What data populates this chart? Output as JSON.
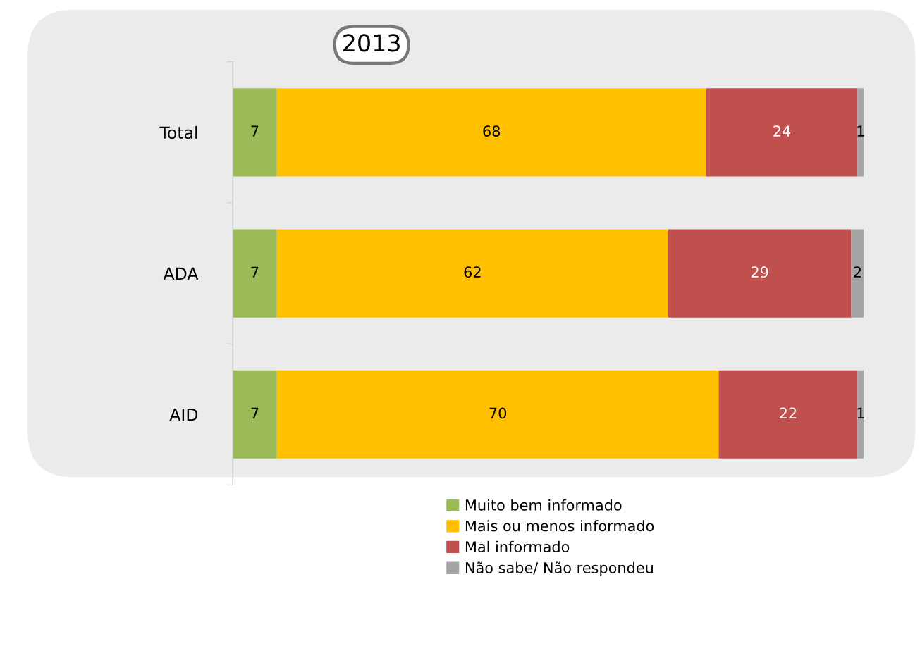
{
  "chart_data": {
    "type": "bar",
    "orientation": "horizontal",
    "stacked": true,
    "title": "2013",
    "categories": [
      "Total",
      "ADA",
      "AID"
    ],
    "series": [
      {
        "name": "Muito bem informado",
        "color": "#9bbb59",
        "values": [
          7,
          7,
          7
        ]
      },
      {
        "name": "Mais ou menos informado",
        "color": "#ffc000",
        "values": [
          68,
          62,
          70
        ]
      },
      {
        "name": "Mal informado",
        "color": "#c0504d",
        "values": [
          24,
          29,
          22
        ]
      },
      {
        "name": "Não sabe/ Não respondeu",
        "color": "#a5a5a5",
        "values": [
          1,
          2,
          1
        ]
      }
    ],
    "data_labels": true,
    "legend": "bottom",
    "grid": false
  }
}
